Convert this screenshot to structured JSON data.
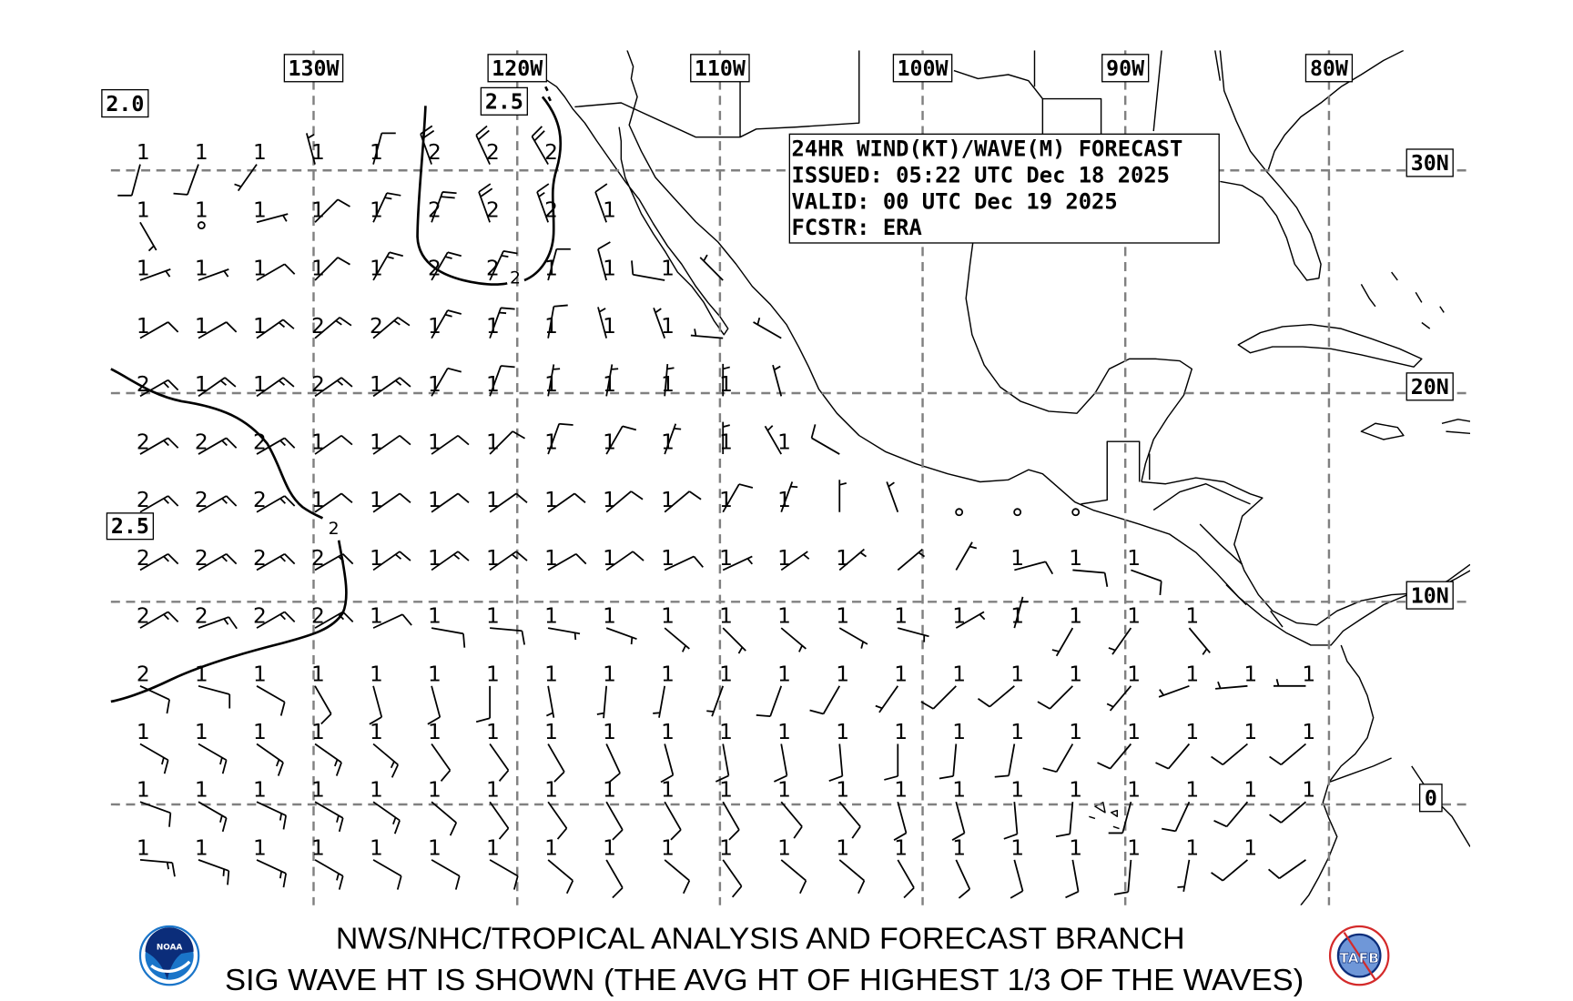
{
  "colors": {
    "grid": "#808080",
    "ink": "#000000",
    "noaa_blue": "#1a75c9",
    "noaa_navy": "#0b2d7a",
    "tafb_red": "#d42a2a"
  },
  "map": {
    "lon_labels": [
      "130W",
      "120W",
      "110W",
      "100W",
      "90W",
      "80W"
    ],
    "lat_labels": [
      "30N",
      "20N",
      "10N",
      "0"
    ],
    "contour_labels": {
      "box_a": "2.0",
      "box_b": "2.5",
      "box_c": "2.5",
      "inline_a": "2",
      "inline_b": "2"
    },
    "info_box": {
      "line1": "24HR WIND(KT)/WAVE(M) FORECAST",
      "line2": "ISSUED: 05:22 UTC Dec 18 2025",
      "line3": "VALID: 00 UTC Dec 19 2025",
      "line4": "FCSTR: ERA"
    },
    "rows": [
      [
        [
          "1",
          195,
          10
        ],
        [
          "1",
          200,
          10
        ],
        [
          "1",
          215,
          5
        ],
        [
          "1",
          345,
          5
        ],
        [
          "1",
          15,
          10
        ],
        [
          "2",
          340,
          20
        ],
        [
          "2",
          335,
          20
        ],
        [
          "2",
          330,
          20
        ]
      ],
      [
        [
          "1",
          150,
          5
        ],
        [
          "1",
          0,
          0
        ],
        [
          "1",
          75,
          5
        ],
        [
          "1",
          45,
          10
        ],
        [
          "1",
          25,
          15
        ],
        [
          "2",
          20,
          20
        ],
        [
          "2",
          340,
          20
        ],
        [
          "2",
          340,
          15
        ],
        [
          "1",
          340,
          10
        ]
      ],
      [
        [
          "1",
          70,
          5
        ],
        [
          "1",
          70,
          5
        ],
        [
          "1",
          60,
          10
        ],
        [
          "1",
          45,
          10
        ],
        [
          "1",
          30,
          15
        ],
        [
          "2",
          30,
          15
        ],
        [
          "2",
          25,
          15
        ],
        [
          "1",
          15,
          10
        ],
        [
          "1",
          345,
          10
        ],
        [
          "1",
          280,
          10
        ],
        [
          null,
          315,
          5
        ]
      ],
      [
        [
          "1",
          60,
          10
        ],
        [
          "1",
          60,
          10
        ],
        [
          "1",
          55,
          15
        ],
        [
          "2",
          50,
          15
        ],
        [
          "2",
          50,
          15
        ],
        [
          "1",
          30,
          15
        ],
        [
          "1",
          20,
          15
        ],
        [
          "1",
          10,
          10
        ],
        [
          "1",
          345,
          5
        ],
        [
          "1",
          340,
          5
        ],
        [
          null,
          275,
          5
        ],
        [
          null,
          300,
          5
        ]
      ],
      [
        [
          "2",
          60,
          15
        ],
        [
          "1",
          55,
          15
        ],
        [
          "1",
          55,
          15
        ],
        [
          "2",
          55,
          15
        ],
        [
          "1",
          55,
          15
        ],
        [
          "1",
          30,
          10
        ],
        [
          "1",
          20,
          10
        ],
        [
          "1",
          10,
          5
        ],
        [
          "1",
          10,
          5
        ],
        [
          "1",
          5,
          5
        ],
        [
          "1",
          0,
          5
        ],
        [
          null,
          345,
          5
        ]
      ],
      [
        [
          "2",
          60,
          15
        ],
        [
          "2",
          60,
          15
        ],
        [
          "2",
          60,
          15
        ],
        [
          "1",
          55,
          10
        ],
        [
          "1",
          55,
          10
        ],
        [
          "1",
          55,
          10
        ],
        [
          "1",
          45,
          10
        ],
        [
          "1",
          20,
          10
        ],
        [
          "1",
          30,
          10
        ],
        [
          "1",
          20,
          5
        ],
        [
          "1",
          0,
          5
        ],
        [
          "1",
          330,
          5
        ],
        [
          null,
          300,
          10
        ]
      ],
      [
        [
          "2",
          60,
          15
        ],
        [
          "2",
          60,
          15
        ],
        [
          "2",
          60,
          15
        ],
        [
          "1",
          55,
          10
        ],
        [
          "1",
          55,
          10
        ],
        [
          "1",
          55,
          10
        ],
        [
          "1",
          55,
          10
        ],
        [
          "1",
          55,
          10
        ],
        [
          "1",
          50,
          10
        ],
        [
          "1",
          50,
          10
        ],
        [
          "1",
          30,
          10
        ],
        [
          "1",
          20,
          5
        ],
        [
          null,
          0,
          5
        ],
        [
          null,
          340,
          5
        ],
        [
          null,
          0,
          0
        ],
        [
          null,
          0,
          0
        ],
        [
          null,
          0,
          0
        ]
      ],
      [
        [
          "2",
          60,
          15
        ],
        [
          "2",
          60,
          15
        ],
        [
          "2",
          60,
          15
        ],
        [
          "2",
          60,
          15
        ],
        [
          "1",
          55,
          15
        ],
        [
          "1",
          55,
          15
        ],
        [
          "1",
          55,
          15
        ],
        [
          "1",
          60,
          10
        ],
        [
          "1",
          55,
          10
        ],
        [
          "1",
          65,
          10
        ],
        [
          "1",
          65,
          5
        ],
        [
          "1",
          55,
          5
        ],
        [
          "1",
          50,
          5
        ],
        [
          null,
          50,
          5
        ],
        [
          null,
          30,
          5
        ],
        [
          "1",
          75,
          10
        ],
        [
          "1",
          95,
          10
        ],
        [
          "1",
          110,
          10
        ]
      ],
      [
        [
          "2",
          60,
          15
        ],
        [
          "2",
          70,
          15
        ],
        [
          "2",
          60,
          15
        ],
        [
          "2",
          60,
          15
        ],
        [
          "1",
          65,
          10
        ],
        [
          "1",
          100,
          10
        ],
        [
          "1",
          95,
          10
        ],
        [
          "1",
          100,
          5
        ],
        [
          "1",
          110,
          5
        ],
        [
          "1",
          130,
          5
        ],
        [
          "1",
          135,
          5
        ],
        [
          "1",
          130,
          5
        ],
        [
          "1",
          120,
          5
        ],
        [
          "1",
          105,
          5
        ],
        [
          "1",
          60,
          5
        ],
        [
          "1",
          15,
          5
        ],
        [
          "1",
          210,
          5
        ],
        [
          "1",
          215,
          5
        ],
        [
          "1",
          140,
          5
        ]
      ],
      [
        [
          "2",
          115,
          10
        ],
        [
          "1",
          105,
          10
        ],
        [
          "1",
          120,
          10
        ],
        [
          "1",
          150,
          10
        ],
        [
          "1",
          165,
          10
        ],
        [
          "1",
          165,
          10
        ],
        [
          "1",
          180,
          10
        ],
        [
          "1",
          170,
          5
        ],
        [
          "1",
          185,
          5
        ],
        [
          "1",
          190,
          5
        ],
        [
          "1",
          200,
          5
        ],
        [
          "1",
          200,
          10
        ],
        [
          "1",
          210,
          10
        ],
        [
          "1",
          215,
          5
        ],
        [
          "1",
          225,
          10
        ],
        [
          "1",
          230,
          10
        ],
        [
          "1",
          225,
          10
        ],
        [
          "1",
          220,
          5
        ],
        [
          "1",
          250,
          5
        ],
        [
          "1",
          265,
          5
        ],
        [
          "1",
          270,
          5
        ]
      ],
      [
        [
          "1",
          120,
          15
        ],
        [
          "1",
          120,
          15
        ],
        [
          "1",
          125,
          15
        ],
        [
          "1",
          125,
          15
        ],
        [
          "1",
          130,
          15
        ],
        [
          "1",
          145,
          10
        ],
        [
          "1",
          145,
          10
        ],
        [
          "1",
          150,
          10
        ],
        [
          "1",
          155,
          10
        ],
        [
          "1",
          165,
          10
        ],
        [
          "1",
          170,
          10
        ],
        [
          "1",
          170,
          10
        ],
        [
          "1",
          175,
          10
        ],
        [
          "1",
          180,
          10
        ],
        [
          "1",
          185,
          10
        ],
        [
          "1",
          190,
          10
        ],
        [
          "1",
          210,
          10
        ],
        [
          "1",
          220,
          10
        ],
        [
          "1",
          220,
          10
        ],
        [
          "1",
          230,
          10
        ],
        [
          "1",
          230,
          10
        ]
      ],
      [
        [
          "1",
          110,
          10
        ],
        [
          "1",
          120,
          15
        ],
        [
          "1",
          115,
          15
        ],
        [
          "1",
          120,
          15
        ],
        [
          "1",
          125,
          15
        ],
        [
          "1",
          130,
          10
        ],
        [
          "1",
          145,
          10
        ],
        [
          "1",
          145,
          10
        ],
        [
          "1",
          150,
          10
        ],
        [
          "1",
          150,
          10
        ],
        [
          "1",
          150,
          10
        ],
        [
          "1",
          140,
          10
        ],
        [
          "1",
          140,
          10
        ],
        [
          "1",
          165,
          10
        ],
        [
          "1",
          165,
          10
        ],
        [
          "1",
          175,
          10
        ],
        [
          "1",
          185,
          10
        ],
        [
          "1",
          195,
          10
        ],
        [
          "1",
          205,
          10
        ],
        [
          "1",
          220,
          10
        ],
        [
          "1",
          230,
          10
        ]
      ],
      [
        [
          "1",
          95,
          15
        ],
        [
          "1",
          110,
          15
        ],
        [
          "1",
          115,
          15
        ],
        [
          "1",
          120,
          15
        ],
        [
          "1",
          120,
          10
        ],
        [
          "1",
          120,
          10
        ],
        [
          "1",
          120,
          10
        ],
        [
          "1",
          130,
          10
        ],
        [
          "1",
          150,
          10
        ],
        [
          "1",
          130,
          10
        ],
        [
          "1",
          145,
          10
        ],
        [
          "1",
          130,
          10
        ],
        [
          "1",
          130,
          10
        ],
        [
          "1",
          150,
          10
        ],
        [
          "1",
          155,
          10
        ],
        [
          "1",
          165,
          10
        ],
        [
          "1",
          170,
          10
        ],
        [
          "1",
          185,
          10
        ],
        [
          "1",
          190,
          5
        ],
        [
          "1",
          230,
          10
        ],
        [
          null,
          235,
          10
        ]
      ]
    ]
  },
  "footer": {
    "line1": "NWS/NHC/TROPICAL ANALYSIS AND FORECAST BRANCH",
    "line2": "SIG WAVE HT IS SHOWN (THE AVG HT OF HIGHEST 1/3 OF THE WAVES)",
    "logo_left": "NOAA",
    "logo_right": "TAFB"
  }
}
